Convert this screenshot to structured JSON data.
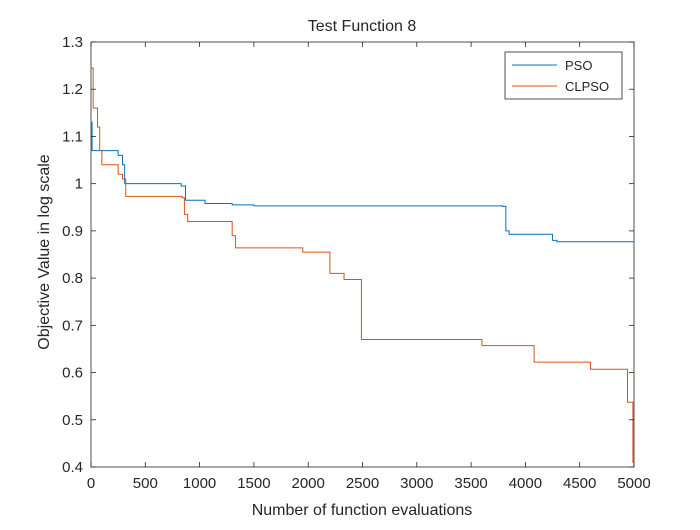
{
  "chart_data": {
    "type": "line",
    "title": "Test Function 8",
    "xlabel": "Number of function evaluations",
    "ylabel": "Objective Value in log scale",
    "xlim": [
      0,
      5000
    ],
    "ylim": [
      0.4,
      1.3
    ],
    "xticks": [
      0,
      500,
      1000,
      1500,
      2000,
      2500,
      3000,
      3500,
      4000,
      4500,
      5000
    ],
    "xtick_labels": [
      "0",
      "500",
      "1000",
      "1500",
      "2000",
      "2500",
      "3000",
      "3500",
      "4000",
      "4500",
      "5000"
    ],
    "yticks": [
      0.4,
      0.5,
      0.6,
      0.7,
      0.8,
      0.9,
      1.0,
      1.1,
      1.2,
      1.3
    ],
    "ytick_labels": [
      "0.4",
      "0.5",
      "0.6",
      "0.7",
      "0.8",
      "0.9",
      "1",
      "1.1",
      "1.2",
      "1.3"
    ],
    "grid": false,
    "legend_position": "top-right",
    "series": [
      {
        "name": "PSO",
        "color": "#0072BD",
        "step": true,
        "points": [
          [
            0,
            1.13
          ],
          [
            10,
            1.07
          ],
          [
            250,
            1.06
          ],
          [
            290,
            1.04
          ],
          [
            310,
            1.0
          ],
          [
            830,
            0.995
          ],
          [
            870,
            0.965
          ],
          [
            1050,
            0.958
          ],
          [
            1300,
            0.955
          ],
          [
            1500,
            0.953
          ],
          [
            3790,
            0.952
          ],
          [
            3820,
            0.9
          ],
          [
            3850,
            0.893
          ],
          [
            4250,
            0.88
          ],
          [
            4290,
            0.877
          ],
          [
            5000,
            0.877
          ]
        ]
      },
      {
        "name": "CLPSO",
        "color": "#D95319",
        "step": true,
        "points": [
          [
            0,
            1.245
          ],
          [
            20,
            1.16
          ],
          [
            60,
            1.12
          ],
          [
            80,
            1.07
          ],
          [
            100,
            1.04
          ],
          [
            250,
            1.02
          ],
          [
            290,
            1.01
          ],
          [
            320,
            0.973
          ],
          [
            840,
            0.97
          ],
          [
            860,
            0.935
          ],
          [
            890,
            0.92
          ],
          [
            1300,
            0.89
          ],
          [
            1330,
            0.864
          ],
          [
            1950,
            0.855
          ],
          [
            2200,
            0.81
          ],
          [
            2330,
            0.797
          ],
          [
            2490,
            0.67
          ],
          [
            3600,
            0.657
          ],
          [
            4080,
            0.622
          ],
          [
            4600,
            0.607
          ],
          [
            4940,
            0.537
          ],
          [
            4990,
            0.41
          ],
          [
            5000,
            0.41
          ]
        ]
      }
    ]
  }
}
